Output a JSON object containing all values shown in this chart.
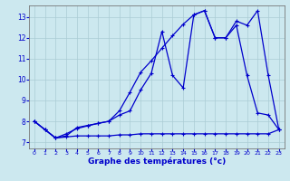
{
  "xlabel": "Graphe des températures (°c)",
  "bg_color": "#cce8ef",
  "grid_color": "#aaccd4",
  "line_color": "#0000cc",
  "xlim": [
    -0.5,
    23.5
  ],
  "ylim": [
    6.7,
    13.55
  ],
  "yticks": [
    7,
    8,
    9,
    10,
    11,
    12,
    13
  ],
  "xticks": [
    0,
    1,
    2,
    3,
    4,
    5,
    6,
    7,
    8,
    9,
    10,
    11,
    12,
    13,
    14,
    15,
    16,
    17,
    18,
    19,
    20,
    21,
    22,
    23
  ],
  "line1_x": [
    0,
    1,
    2,
    3,
    4,
    5,
    6,
    7,
    8,
    9,
    10,
    11,
    12,
    13,
    14,
    15,
    16,
    17,
    18,
    19,
    20,
    21,
    22,
    23
  ],
  "line1_y": [
    8.0,
    7.6,
    7.2,
    7.3,
    7.7,
    7.8,
    7.9,
    8.0,
    8.3,
    8.5,
    9.5,
    10.3,
    12.3,
    10.2,
    9.6,
    13.1,
    13.3,
    12.0,
    12.0,
    12.6,
    10.2,
    8.4,
    8.3,
    7.6
  ],
  "line2_x": [
    0,
    1,
    2,
    3,
    4,
    5,
    6,
    7,
    8,
    9,
    10,
    11,
    12,
    13,
    14,
    15,
    16,
    17,
    18,
    19,
    20,
    21,
    22,
    23
  ],
  "line2_y": [
    8.0,
    7.6,
    7.2,
    7.4,
    7.65,
    7.78,
    7.9,
    8.0,
    8.5,
    9.4,
    10.35,
    10.9,
    11.5,
    12.1,
    12.65,
    13.1,
    13.3,
    12.0,
    12.0,
    12.8,
    12.6,
    13.3,
    10.2,
    7.6
  ],
  "line3_x": [
    0,
    1,
    2,
    3,
    4,
    5,
    6,
    7,
    8,
    9,
    10,
    11,
    12,
    13,
    14,
    15,
    16,
    17,
    18,
    19,
    20,
    21,
    22,
    23
  ],
  "line3_y": [
    8.0,
    7.6,
    7.2,
    7.25,
    7.3,
    7.3,
    7.3,
    7.3,
    7.35,
    7.35,
    7.4,
    7.4,
    7.4,
    7.4,
    7.4,
    7.4,
    7.4,
    7.4,
    7.4,
    7.4,
    7.4,
    7.4,
    7.4,
    7.6
  ]
}
